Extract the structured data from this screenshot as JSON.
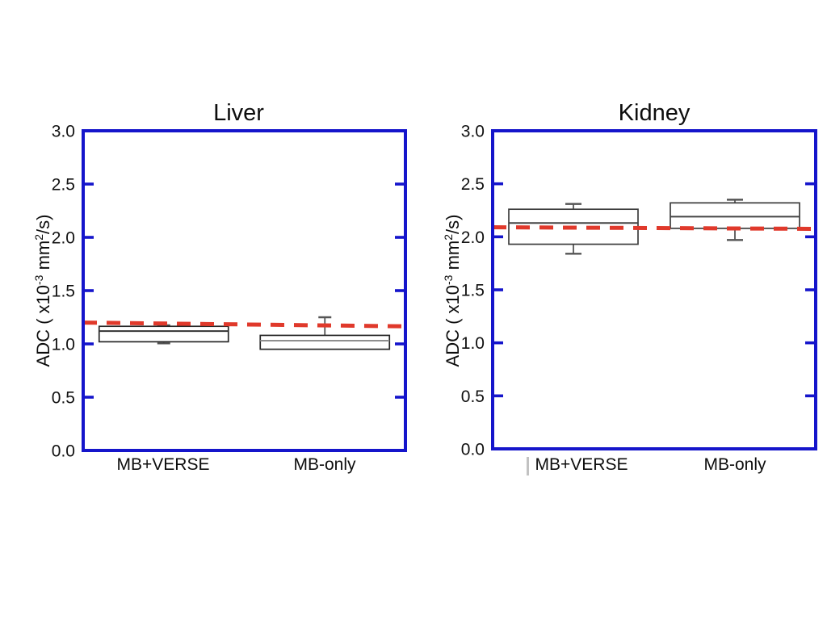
{
  "figure": {
    "background_color": "#ffffff",
    "axis_label_parts": {
      "prefix": "ADC ( x10",
      "sup1": "-3",
      "mid": " mm",
      "sup2": "2",
      "suffix": "/s)"
    },
    "ylabel_plain": "ADC ( x10-3 mm2/s)"
  },
  "chart_data": [
    {
      "type": "box",
      "title": "Liver",
      "ylabel": "ADC ( x10-3 mm2/s)",
      "ylim": [
        0.0,
        3.0
      ],
      "yticks": [
        0.0,
        0.5,
        1.0,
        1.5,
        2.0,
        2.5,
        3.0
      ],
      "ytick_labels": [
        "0.0",
        "0.5",
        "1.0",
        "1.5",
        "2.0",
        "2.5",
        "3.0"
      ],
      "categories": [
        "MB+VERSE",
        "MB-only"
      ],
      "grid": false,
      "legend": "none",
      "colors": {
        "frame": "#1515cb",
        "reference": "#e0392b",
        "box_stroke": "#262626",
        "whisker": "#555555"
      },
      "boxes": [
        {
          "category": "MB+VERSE",
          "q1": 1.02,
          "median": 1.12,
          "q3": 1.165,
          "whisker_low": 1.005,
          "whisker_high": 1.175,
          "median_color": "#333333"
        },
        {
          "category": "MB-only",
          "q1": 0.95,
          "median": 1.03,
          "q3": 1.08,
          "whisker_low": 0.95,
          "whisker_high": 1.25,
          "median_color": "#8f8f8f"
        }
      ],
      "reference_line": {
        "style": "dashed",
        "color": "#e0392b",
        "y_start": 1.2,
        "y_end": 1.165
      }
    },
    {
      "type": "box",
      "title": "Kidney",
      "ylabel": "ADC ( x10-3 mm2/s)",
      "ylim": [
        0.0,
        3.0
      ],
      "yticks": [
        0.0,
        0.5,
        1.0,
        1.5,
        2.0,
        2.5,
        3.0
      ],
      "ytick_labels": [
        "0.0",
        "0.5",
        "1.0",
        "1.5",
        "2.0",
        "2.5",
        "3.0"
      ],
      "categories": [
        "MB+VERSE",
        "MB-only"
      ],
      "grid": false,
      "legend": "none",
      "colors": {
        "frame": "#1515cb",
        "reference": "#e0392b",
        "box_stroke": "#3d3d3d",
        "whisker": "#555555"
      },
      "boxes": [
        {
          "category": "MB+VERSE",
          "q1": 1.93,
          "median": 2.13,
          "q3": 2.26,
          "whisker_low": 1.84,
          "whisker_high": 2.31,
          "median_color": "#444444"
        },
        {
          "category": "MB-only",
          "q1": 2.08,
          "median": 2.19,
          "q3": 2.32,
          "whisker_low": 1.97,
          "whisker_high": 2.35,
          "median_color": "#444444"
        }
      ],
      "reference_line": {
        "style": "dashed",
        "color": "#e0392b",
        "y_start": 2.09,
        "y_end": 2.075
      }
    }
  ]
}
